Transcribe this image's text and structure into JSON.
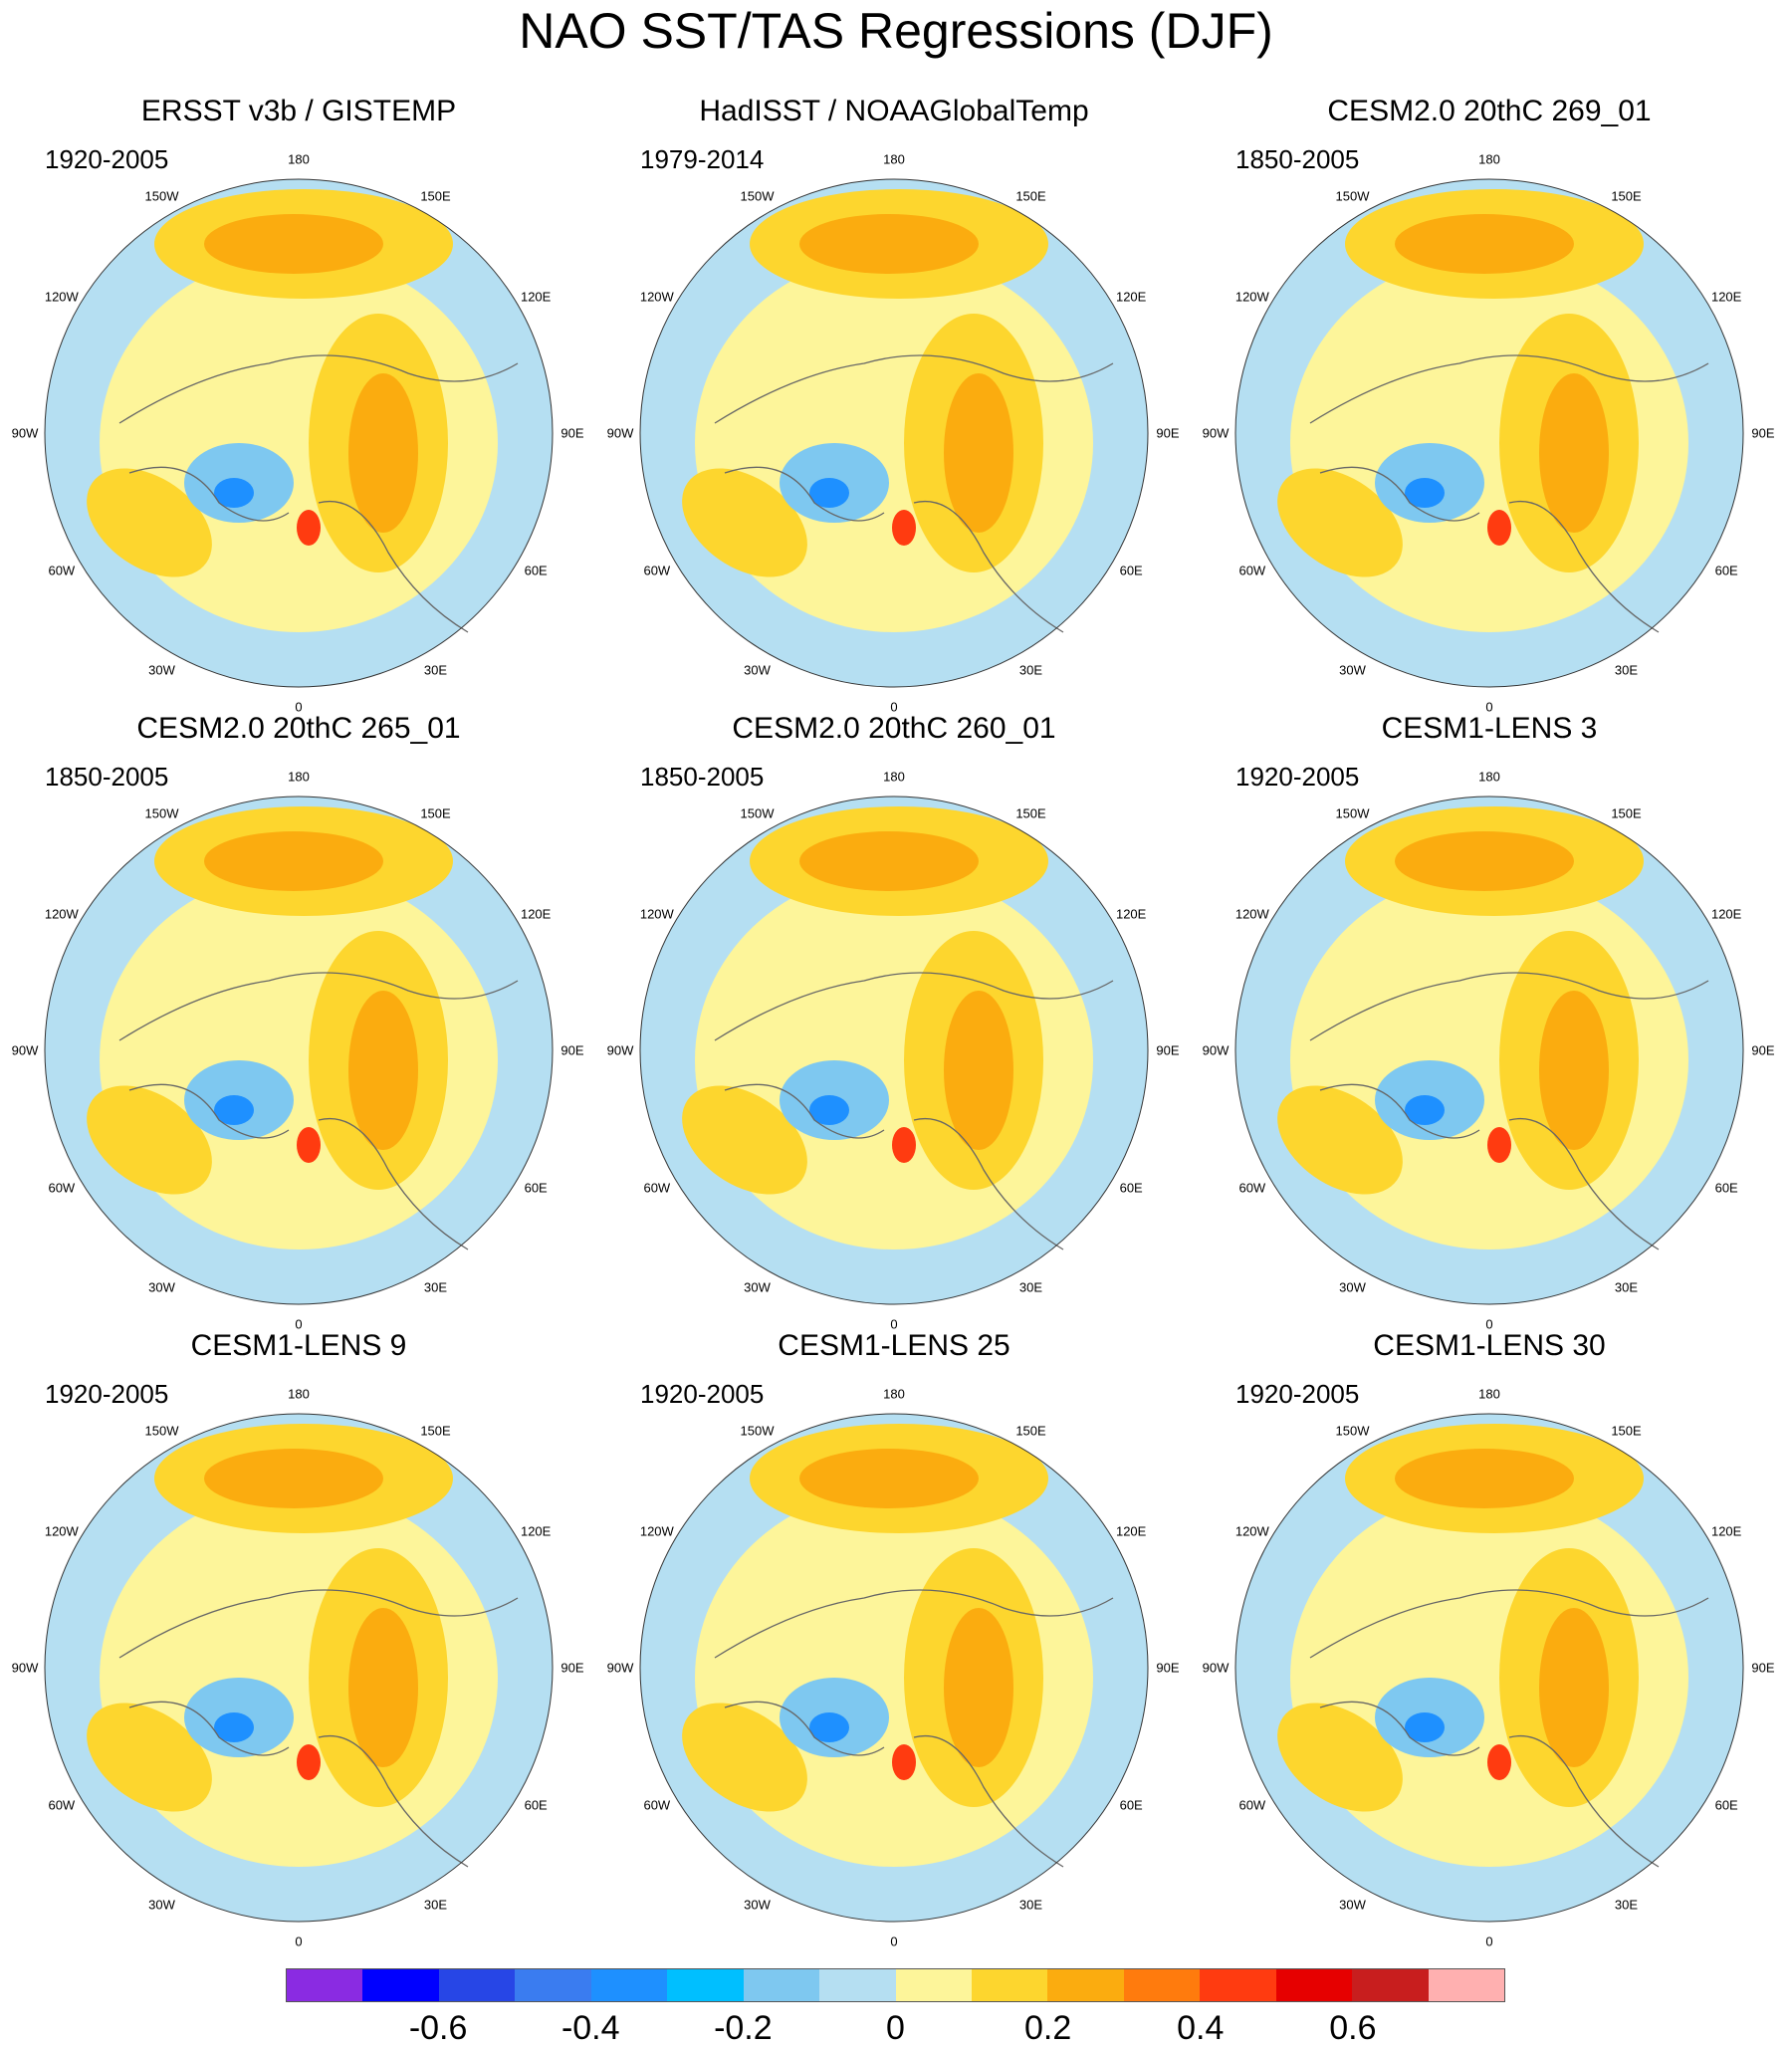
{
  "title": "NAO SST/TAS Regressions (DJF)",
  "longitude_labels": {
    "top": "180",
    "tl1": "150W",
    "tr1": "150E",
    "tl2": "120W",
    "tr2": "120E",
    "left": "90W",
    "right": "90E",
    "bl2": "60W",
    "br2": "60E",
    "bl1": "30W",
    "br1": "30E",
    "bottom": "0"
  },
  "panels": [
    {
      "title": "ERSST v3b / GISTEMP",
      "period": "1920-2005"
    },
    {
      "title": "HadISST / NOAAGlobalTemp",
      "period": "1979-2014"
    },
    {
      "title": "CESM2.0 20thC 269_01",
      "period": "1850-2005"
    },
    {
      "title": "CESM2.0 20thC 265_01",
      "period": "1850-2005"
    },
    {
      "title": "CESM2.0 20thC 260_01",
      "period": "1850-2005"
    },
    {
      "title": "CESM1-LENS 3",
      "period": "1920-2005"
    },
    {
      "title": "CESM1-LENS 9",
      "period": "1920-2005"
    },
    {
      "title": "CESM1-LENS 25",
      "period": "1920-2005"
    },
    {
      "title": "CESM1-LENS 30",
      "period": "1920-2005"
    }
  ],
  "colorbar": {
    "colors": [
      "#8a2be2",
      "#0000ff",
      "#2746e6",
      "#3a7cf0",
      "#1e90ff",
      "#00bfff",
      "#7ec8f0",
      "#b5dff2",
      "#fdf59a",
      "#fdd62e",
      "#fbac0f",
      "#ff7b0d",
      "#ff3b10",
      "#e60000",
      "#c81e1e",
      "#ffb0b0"
    ],
    "ticks": [
      "-0.6",
      "-0.4",
      "-0.2",
      "0",
      "0.2",
      "0.4",
      "0.6"
    ]
  }
}
